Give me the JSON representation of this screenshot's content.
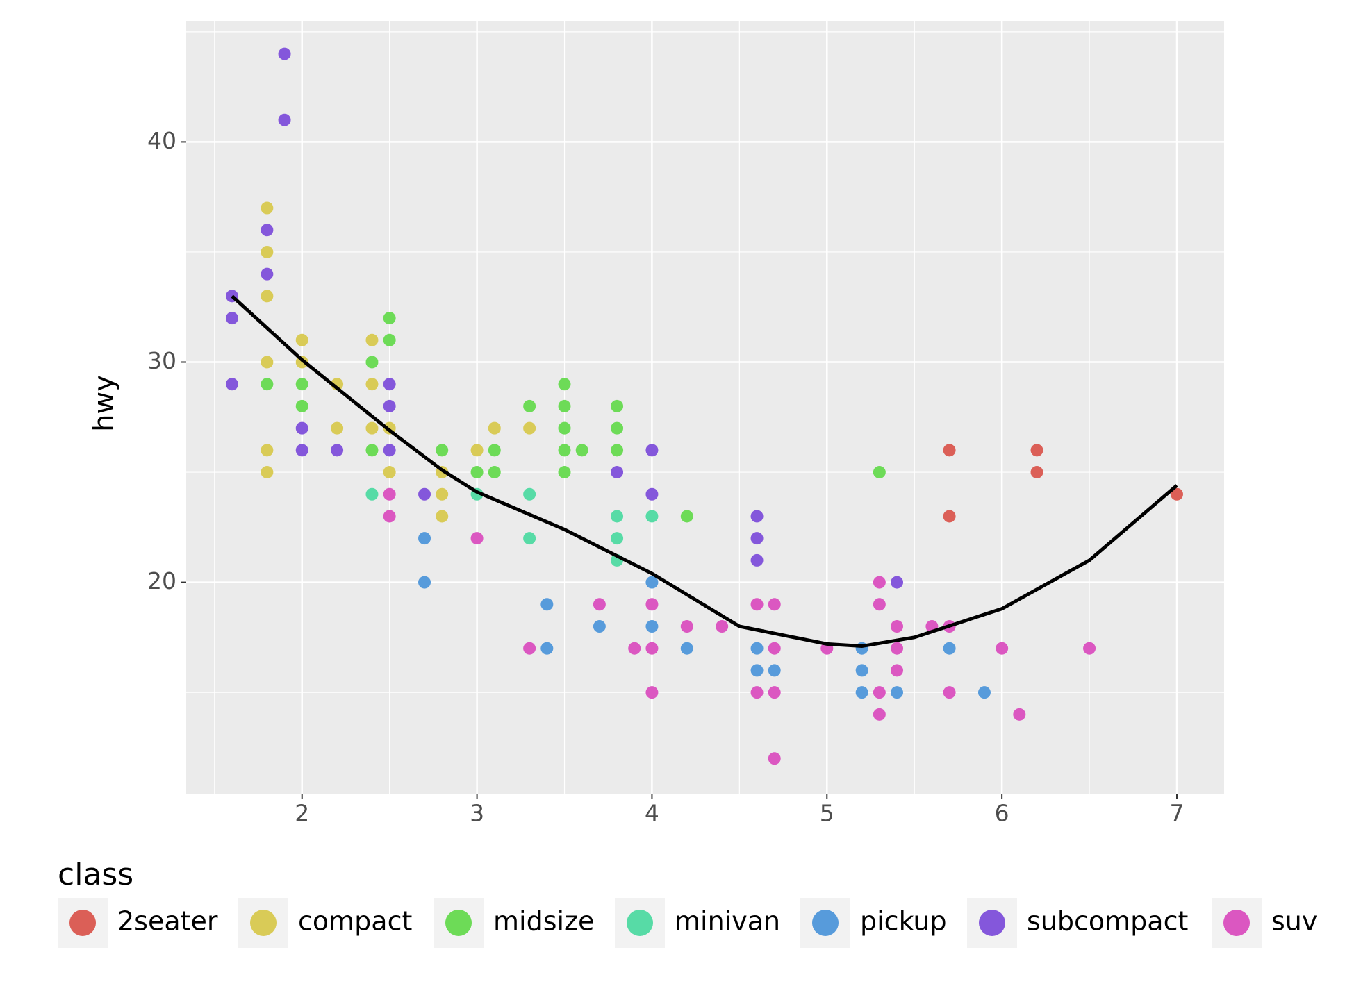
{
  "chart_data": {
    "type": "scatter",
    "y_label": "hwy",
    "legend_title": "class",
    "xlim": [
      1.338,
      7.27
    ],
    "ylim": [
      10.4,
      45.5
    ],
    "xticks": [
      2,
      3,
      4,
      5,
      6,
      7
    ],
    "yticks": [
      20,
      30,
      40
    ],
    "x_minor_grid": [
      1.5,
      2.5,
      3.5,
      4.5,
      5.5,
      6.5
    ],
    "y_minor_grid": [
      15,
      25,
      35,
      45
    ],
    "grid": true,
    "legend_position": "bottom",
    "series": [
      {
        "name": "2seater",
        "color": "#db5f57",
        "x": [
          5.7,
          5.7,
          6.2,
          6.2,
          7.0
        ],
        "y": [
          26,
          23,
          26,
          25,
          24
        ]
      },
      {
        "name": "compact",
        "color": "#d9cb57",
        "x": [
          1.8,
          1.8,
          1.8,
          1.8,
          1.8,
          1.8,
          2.0,
          2.0,
          2.2,
          2.2,
          2.4,
          2.4,
          2.4,
          2.5,
          2.5,
          2.8,
          2.8,
          2.8,
          3.0,
          3.1,
          3.3
        ],
        "y": [
          37,
          35,
          33,
          30,
          26,
          25,
          31,
          30,
          29,
          27,
          31,
          29,
          27,
          27,
          25,
          25,
          24,
          23,
          26,
          27,
          27
        ]
      },
      {
        "name": "midsize",
        "color": "#6ddb57",
        "x": [
          1.8,
          2.0,
          2.0,
          2.4,
          2.4,
          2.5,
          2.5,
          2.8,
          3.0,
          3.1,
          3.1,
          3.3,
          3.5,
          3.5,
          3.5,
          3.5,
          3.5,
          3.6,
          3.8,
          3.8,
          3.8,
          4.2,
          5.3
        ],
        "y": [
          29,
          29,
          28,
          30,
          26,
          32,
          31,
          26,
          25,
          26,
          25,
          28,
          29,
          28,
          27,
          26,
          25,
          26,
          28,
          27,
          26,
          23,
          25
        ]
      },
      {
        "name": "minivan",
        "color": "#57dba6",
        "x": [
          2.4,
          3.0,
          3.3,
          3.3,
          3.8,
          3.8,
          3.8,
          4.0
        ],
        "y": [
          24,
          24,
          24,
          22,
          23,
          22,
          21,
          23
        ]
      },
      {
        "name": "pickup",
        "color": "#579bdb",
        "x": [
          2.7,
          2.7,
          3.4,
          3.4,
          3.7,
          4.0,
          4.0,
          4.2,
          4.6,
          4.6,
          4.7,
          5.2,
          5.2,
          5.2,
          5.4,
          5.7,
          5.9
        ],
        "y": [
          22,
          20,
          19,
          17,
          18,
          20,
          18,
          17,
          17,
          16,
          16,
          17,
          16,
          15,
          15,
          17,
          15
        ]
      },
      {
        "name": "subcompact",
        "color": "#8457db",
        "x": [
          1.6,
          1.6,
          1.6,
          1.8,
          1.8,
          1.9,
          1.9,
          2.0,
          2.0,
          2.2,
          2.5,
          2.5,
          2.5,
          2.7,
          3.8,
          4.0,
          4.0,
          4.6,
          4.6,
          4.6,
          5.4
        ],
        "y": [
          33,
          32,
          29,
          36,
          34,
          44,
          41,
          27,
          26,
          26,
          29,
          28,
          26,
          24,
          25,
          26,
          24,
          23,
          22,
          21,
          20
        ]
      },
      {
        "name": "suv",
        "color": "#db57c1",
        "x": [
          2.5,
          2.5,
          3.0,
          3.3,
          3.7,
          3.9,
          4.0,
          4.0,
          4.0,
          4.2,
          4.4,
          4.6,
          4.6,
          4.7,
          4.7,
          4.7,
          4.7,
          5.0,
          5.3,
          5.3,
          5.3,
          5.3,
          5.4,
          5.4,
          5.4,
          5.6,
          5.7,
          5.7,
          6.0,
          6.1,
          6.5
        ],
        "y": [
          24,
          23,
          22,
          17,
          19,
          17,
          19,
          17,
          15,
          18,
          18,
          19,
          15,
          19,
          17,
          15,
          12,
          17,
          20,
          19,
          15,
          14,
          18,
          17,
          16,
          18,
          18,
          15,
          17,
          14,
          17
        ]
      }
    ],
    "smooth": {
      "color": "#000000",
      "x": [
        1.6,
        2.0,
        2.5,
        2.8,
        3.0,
        3.5,
        4.0,
        4.5,
        5.0,
        5.2,
        5.5,
        6.0,
        6.5,
        7.0
      ],
      "y": [
        33,
        30.1,
        26.9,
        25.1,
        24.1,
        22.4,
        20.4,
        18.0,
        17.2,
        17.1,
        17.5,
        18.8,
        21.0,
        24.4
      ]
    }
  }
}
